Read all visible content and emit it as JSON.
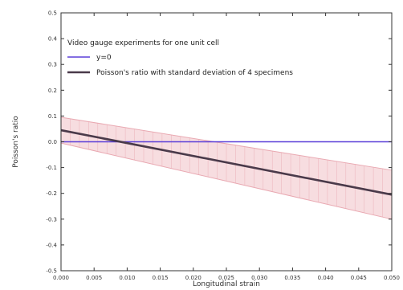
{
  "chart_data": {
    "type": "line",
    "title": "",
    "xlabel": "Longitudinal strain",
    "ylabel": "Poisson's ratio",
    "xlim": [
      0.0,
      0.05
    ],
    "ylim": [
      -0.5,
      0.5
    ],
    "x_ticks": [
      "0.000",
      "0.005",
      "0.010",
      "0.015",
      "0.020",
      "0.025",
      "0.030",
      "0.035",
      "0.040",
      "0.045",
      "0.050"
    ],
    "y_ticks": [
      "-0.5",
      "-0.4",
      "-0.3",
      "-0.2",
      "-0.1",
      "0.0",
      "0.1",
      "0.2",
      "0.3",
      "0.4",
      "0.5"
    ],
    "grid": false,
    "legend": {
      "placement": "top-left",
      "title": "Video gauge experiments for one unit cell",
      "entries": [
        {
          "label": "y=0",
          "color": "#5b3fd8"
        },
        {
          "label": "Poisson's ratio with standard deviation of 4 specimens",
          "color": "#4a3a4a"
        }
      ]
    },
    "series": [
      {
        "name": "y=0",
        "x": [
          0.0,
          0.05
        ],
        "y": [
          0.0,
          0.0
        ],
        "color": "#5b3fd8"
      },
      {
        "name": "Poisson's ratio with standard deviation of 4 specimens",
        "x": [
          0.0,
          0.05
        ],
        "y": [
          0.045,
          -0.205
        ],
        "color": "#4a3a4a"
      }
    ],
    "band": {
      "series": "Poisson's ratio with standard deviation of 4 specimens",
      "x": [
        0.0,
        0.05
      ],
      "upper": [
        0.095,
        -0.11
      ],
      "lower": [
        -0.005,
        -0.3
      ],
      "fill": "#f7dde0",
      "edge": "#e9a9b2"
    }
  }
}
